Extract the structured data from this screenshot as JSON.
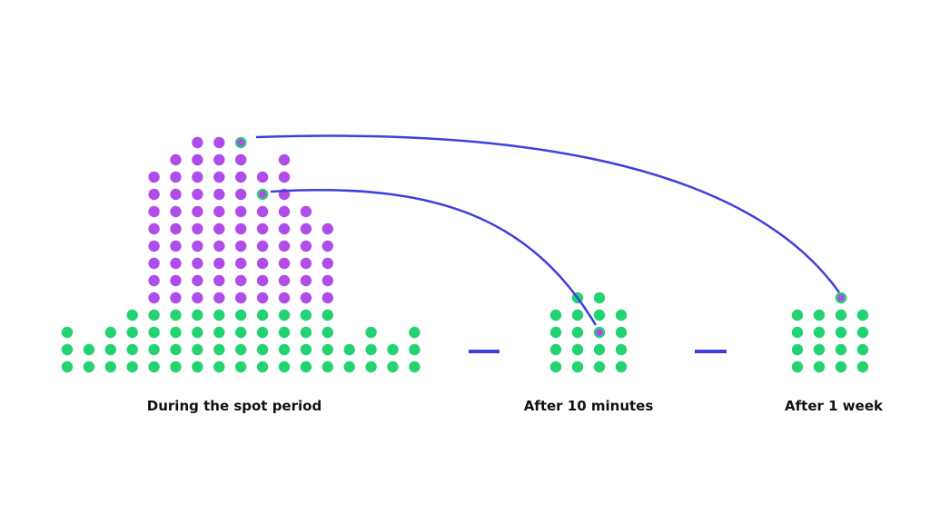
{
  "labels": [
    "During the spot period",
    "After 10 minutes",
    "After 1 week"
  ]
}
